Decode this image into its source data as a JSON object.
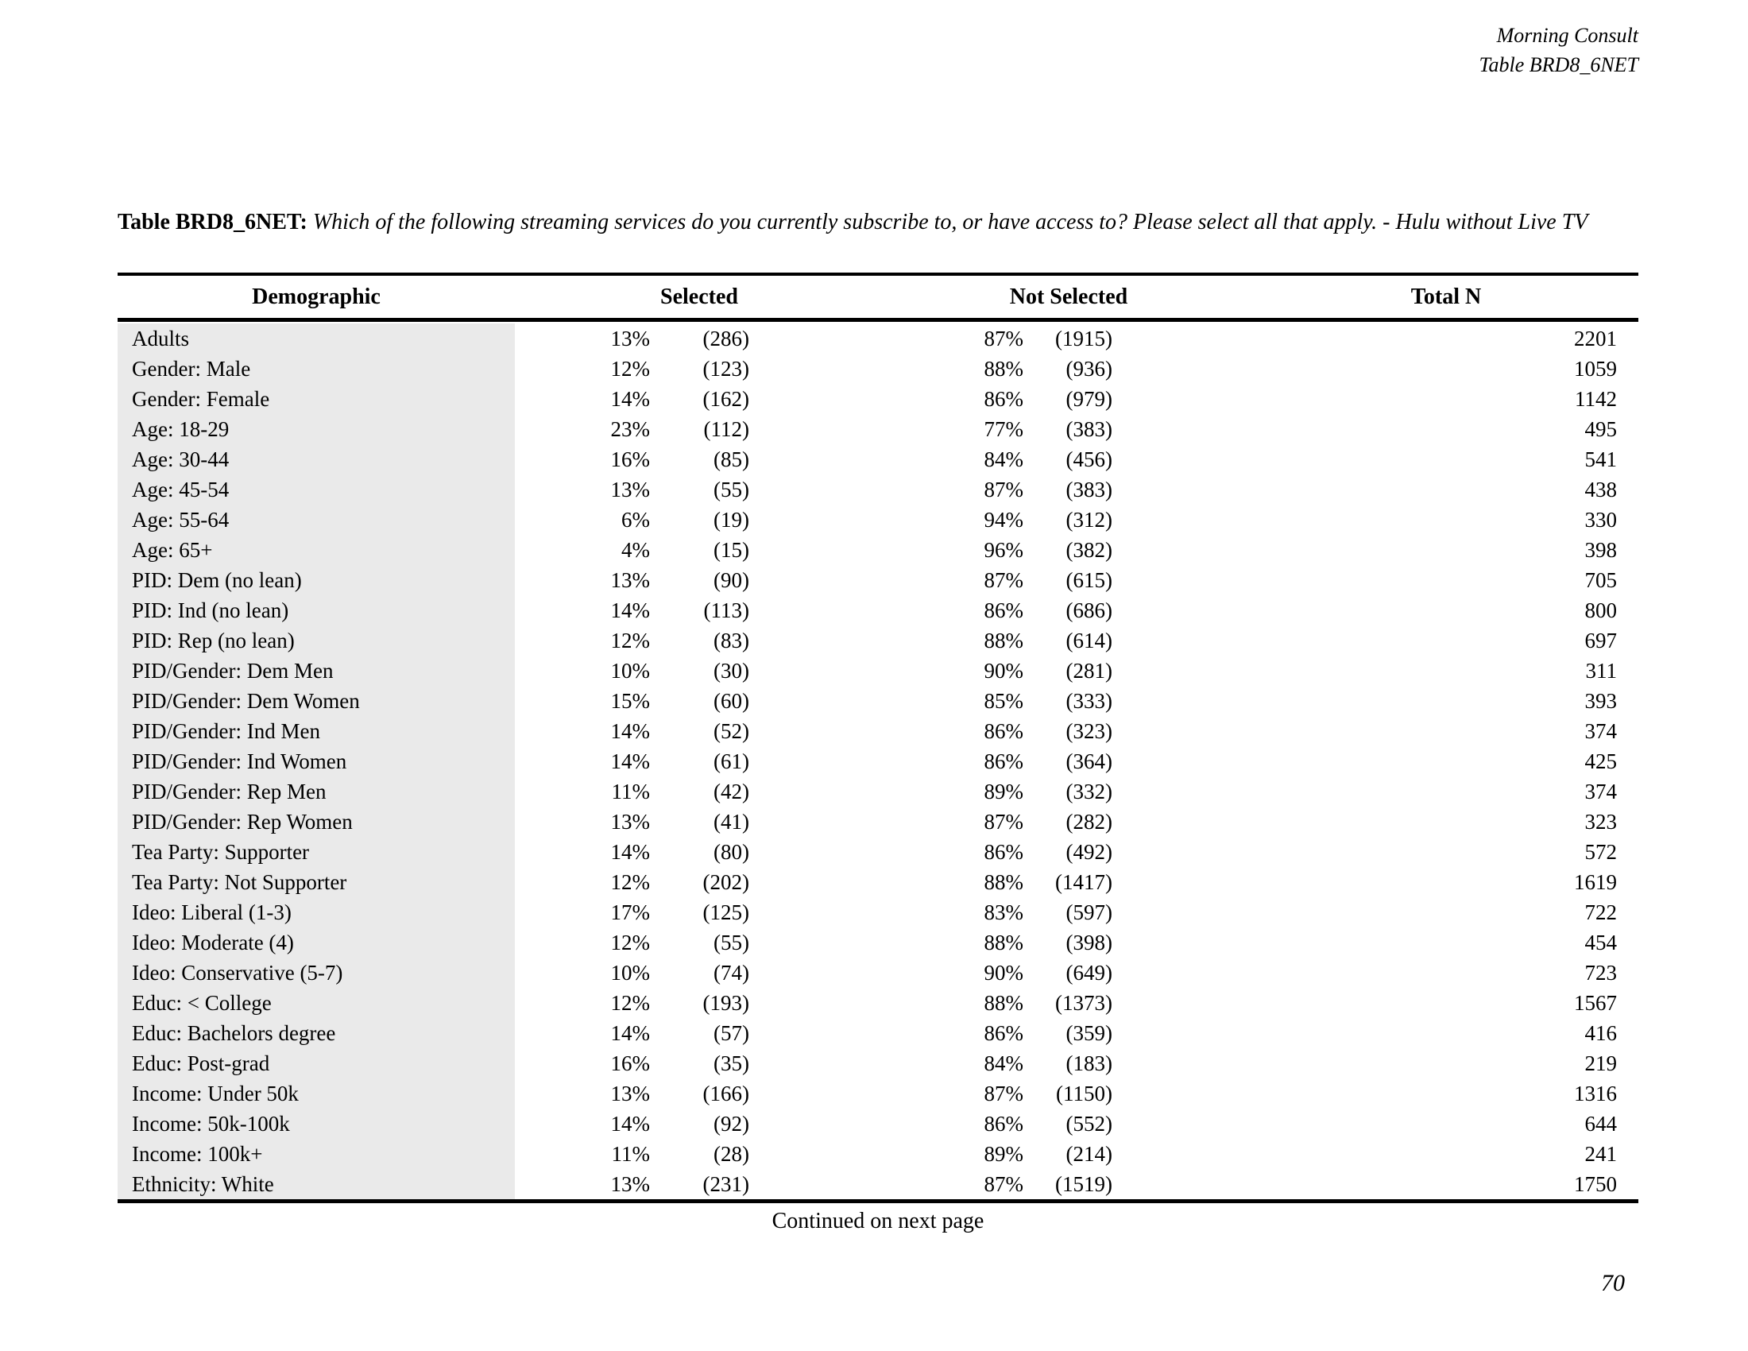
{
  "corner_header": {
    "org": "Morning Consult",
    "table_id": "Table BRD8_6NET"
  },
  "title": {
    "label": "Table BRD8_6NET:",
    "question": "Which of the following streaming services do you currently subscribe to, or have access to? Please select all that apply. - Hulu without Live TV"
  },
  "table": {
    "columns": {
      "demographic": "Demographic",
      "selected": "Selected",
      "not_selected": "Not Selected",
      "total_n": "Total N"
    },
    "rows": [
      [
        "Adults",
        "13%",
        "(286)",
        "87%",
        "(1915)",
        "2201"
      ],
      [
        "Gender: Male",
        "12%",
        "(123)",
        "88%",
        "(936)",
        "1059"
      ],
      [
        "Gender: Female",
        "14%",
        "(162)",
        "86%",
        "(979)",
        "1142"
      ],
      [
        "Age: 18-29",
        "23%",
        "(112)",
        "77%",
        "(383)",
        "495"
      ],
      [
        "Age: 30-44",
        "16%",
        "(85)",
        "84%",
        "(456)",
        "541"
      ],
      [
        "Age: 45-54",
        "13%",
        "(55)",
        "87%",
        "(383)",
        "438"
      ],
      [
        "Age: 55-64",
        "6%",
        "(19)",
        "94%",
        "(312)",
        "330"
      ],
      [
        "Age: 65+",
        "4%",
        "(15)",
        "96%",
        "(382)",
        "398"
      ],
      [
        "PID: Dem (no lean)",
        "13%",
        "(90)",
        "87%",
        "(615)",
        "705"
      ],
      [
        "PID: Ind (no lean)",
        "14%",
        "(113)",
        "86%",
        "(686)",
        "800"
      ],
      [
        "PID: Rep (no lean)",
        "12%",
        "(83)",
        "88%",
        "(614)",
        "697"
      ],
      [
        "PID/Gender: Dem Men",
        "10%",
        "(30)",
        "90%",
        "(281)",
        "311"
      ],
      [
        "PID/Gender: Dem Women",
        "15%",
        "(60)",
        "85%",
        "(333)",
        "393"
      ],
      [
        "PID/Gender: Ind Men",
        "14%",
        "(52)",
        "86%",
        "(323)",
        "374"
      ],
      [
        "PID/Gender: Ind Women",
        "14%",
        "(61)",
        "86%",
        "(364)",
        "425"
      ],
      [
        "PID/Gender: Rep Men",
        "11%",
        "(42)",
        "89%",
        "(332)",
        "374"
      ],
      [
        "PID/Gender: Rep Women",
        "13%",
        "(41)",
        "87%",
        "(282)",
        "323"
      ],
      [
        "Tea Party: Supporter",
        "14%",
        "(80)",
        "86%",
        "(492)",
        "572"
      ],
      [
        "Tea Party: Not Supporter",
        "12%",
        "(202)",
        "88%",
        "(1417)",
        "1619"
      ],
      [
        "Ideo: Liberal (1-3)",
        "17%",
        "(125)",
        "83%",
        "(597)",
        "722"
      ],
      [
        "Ideo: Moderate (4)",
        "12%",
        "(55)",
        "88%",
        "(398)",
        "454"
      ],
      [
        "Ideo: Conservative (5-7)",
        "10%",
        "(74)",
        "90%",
        "(649)",
        "723"
      ],
      [
        "Educ: < College",
        "12%",
        "(193)",
        "88%",
        "(1373)",
        "1567"
      ],
      [
        "Educ: Bachelors degree",
        "14%",
        "(57)",
        "86%",
        "(359)",
        "416"
      ],
      [
        "Educ: Post-grad",
        "16%",
        "(35)",
        "84%",
        "(183)",
        "219"
      ],
      [
        "Income: Under 50k",
        "13%",
        "(166)",
        "87%",
        "(1150)",
        "1316"
      ],
      [
        "Income: 50k-100k",
        "14%",
        "(92)",
        "86%",
        "(552)",
        "644"
      ],
      [
        "Income: 100k+",
        "11%",
        "(28)",
        "89%",
        "(214)",
        "241"
      ],
      [
        "Ethnicity: White",
        "13%",
        "(231)",
        "87%",
        "(1519)",
        "1750"
      ]
    ]
  },
  "footer": {
    "continued": "Continued on next page",
    "page_number": "70"
  },
  "colors": {
    "row_shade": "#eaeaea",
    "rule": "#000000",
    "text": "#000000"
  }
}
